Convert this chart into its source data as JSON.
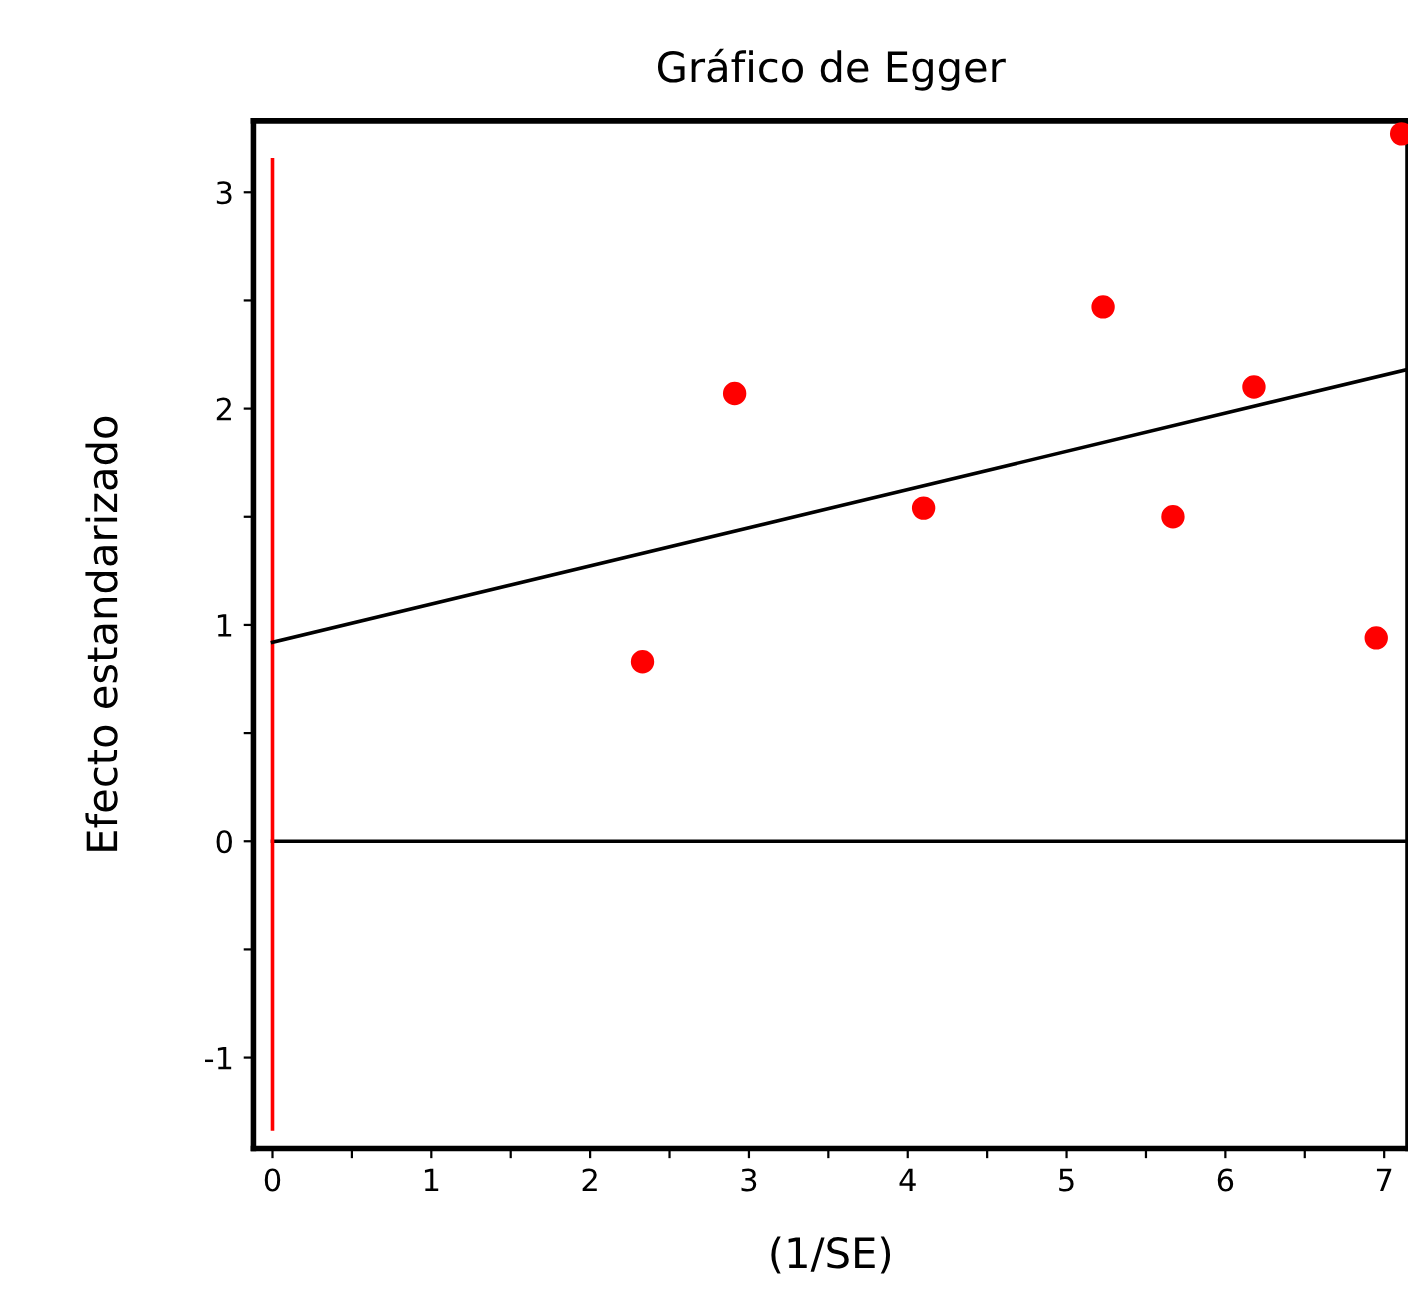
{
  "chart_data": {
    "type": "scatter",
    "title": "Gráfico de Egger",
    "xlabel": "(1/SE)",
    "ylabel": "Efecto estandarizado",
    "xlim": [
      -0.12,
      7.15
    ],
    "ylim": [
      -1.42,
      3.33
    ],
    "xticks": [
      0,
      {
        "value": 0.5,
        "label": null
      },
      1,
      {
        "value": 1.5,
        "label": null
      },
      2,
      {
        "value": 2.5,
        "label": null
      },
      3,
      {
        "value": 3.5,
        "label": null
      },
      4,
      {
        "value": 4.5,
        "label": null
      },
      5,
      {
        "value": 5.5,
        "label": null
      },
      6,
      {
        "value": 6.5,
        "label": null
      },
      7
    ],
    "yticks": [
      -1,
      {
        "value": -0.5,
        "label": null
      },
      0,
      {
        "value": 0.5,
        "label": null
      },
      1,
      {
        "value": 1.5,
        "label": null
      },
      2,
      {
        "value": 2.5,
        "label": null
      },
      3
    ],
    "grid": false,
    "legend": false,
    "series": [
      {
        "type": "line",
        "color": "#000000",
        "x": [
          0,
          7.15
        ],
        "values": [
          0,
          0
        ],
        "marker": "none"
      },
      {
        "type": "line",
        "color": "#ff0000",
        "x": [
          0,
          0
        ],
        "values": [
          -1.33,
          3.15
        ],
        "marker": "none"
      },
      {
        "type": "line",
        "color": "#000000",
        "x": [
          0,
          7.14
        ],
        "values": [
          0.92,
          2.18
        ],
        "marker": "none"
      },
      {
        "color": "#ff0000",
        "marker": "circle",
        "x": [
          2.33,
          2.91,
          4.1,
          5.23,
          5.67,
          6.18,
          6.95,
          7.11
        ],
        "values": [
          0.83,
          2.07,
          1.54,
          2.47,
          1.5,
          2.1,
          0.94,
          3.27
        ]
      }
    ]
  }
}
